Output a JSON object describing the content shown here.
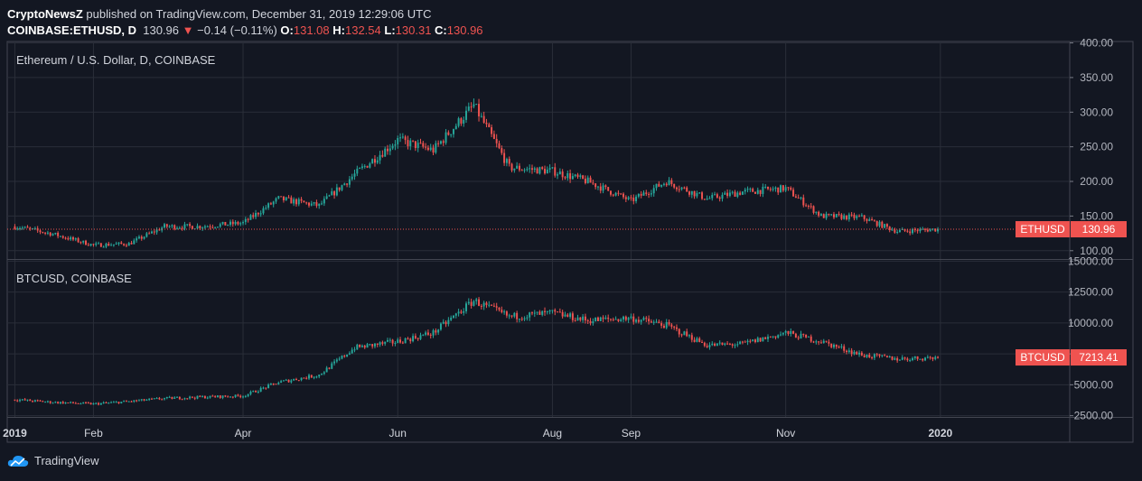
{
  "header": {
    "author": "CryptoNewsZ",
    "published_text": "published on TradingView.com, December 31, 2019 12:29:06 UTC",
    "symbol": "COINBASE:ETHUSD, D",
    "last": "130.96",
    "change": "−0.14 (−0.11%)",
    "o_label": "O:",
    "o_value": "131.08",
    "h_label": "H:",
    "h_value": "132.54",
    "l_label": "L:",
    "l_value": "130.31",
    "c_label": "C:",
    "c_value": "130.96"
  },
  "footer": {
    "brand": "TradingView"
  },
  "colors": {
    "background": "#131722",
    "up": "#26a69a",
    "down": "#ef5350",
    "grid": "#2a2e39",
    "axis_text": "#b2b5be"
  },
  "chart_data": [
    {
      "type": "candlestick",
      "title": "Ethereum / U.S. Dollar, D, COINBASE",
      "series_label": "ETHUSD",
      "last_price": "130.96",
      "ylim": [
        88,
        402
      ],
      "yticks": [
        "400.00",
        "350.00",
        "300.00",
        "250.00",
        "200.00",
        "150.00",
        "100.00"
      ],
      "ytick_values": [
        400,
        350,
        300,
        250,
        200,
        150,
        100
      ],
      "x": [
        "2019-01",
        "2019-01-15",
        "2019-02",
        "2019-02-15",
        "2019-03",
        "2019-03-15",
        "2019-04",
        "2019-04-15",
        "2019-05",
        "2019-05-15",
        "2019-06",
        "2019-06-15",
        "2019-07",
        "2019-07-15",
        "2019-08",
        "2019-08-15",
        "2019-09",
        "2019-09-15",
        "2019-10",
        "2019-10-15",
        "2019-11",
        "2019-11-15",
        "2019-12",
        "2019-12-15",
        "2019-12-31"
      ],
      "close_approx": [
        135,
        125,
        108,
        110,
        135,
        135,
        140,
        175,
        165,
        210,
        260,
        245,
        310,
        220,
        215,
        200,
        172,
        200,
        175,
        185,
        190,
        150,
        148,
        128,
        131
      ],
      "grid": true,
      "legend": "top-left"
    },
    {
      "type": "candlestick",
      "title": "BTCUSD, COINBASE",
      "series_label": "BTCUSD",
      "last_price": "7213.41",
      "ylim": [
        2400,
        15100
      ],
      "yticks": [
        "15000.00",
        "12500.00",
        "10000.00",
        "7500.00",
        "5000.00",
        "2500.00"
      ],
      "ytick_values": [
        15000,
        12500,
        10000,
        7500,
        5000,
        2500
      ],
      "x": [
        "2019-01",
        "2019-01-15",
        "2019-02",
        "2019-02-15",
        "2019-03",
        "2019-03-15",
        "2019-04",
        "2019-04-15",
        "2019-05",
        "2019-05-15",
        "2019-06",
        "2019-06-15",
        "2019-07",
        "2019-07-15",
        "2019-08",
        "2019-08-15",
        "2019-09",
        "2019-09-15",
        "2019-10",
        "2019-10-15",
        "2019-11",
        "2019-11-15",
        "2019-12",
        "2019-12-15",
        "2019-12-31"
      ],
      "close_approx": [
        3800,
        3600,
        3450,
        3650,
        3900,
        4000,
        4100,
        5200,
        5800,
        8000,
        8500,
        9200,
        11800,
        10500,
        10800,
        10200,
        10400,
        9800,
        8200,
        8300,
        9200,
        8500,
        7400,
        7100,
        7213
      ],
      "grid": true,
      "legend": "top-left"
    }
  ],
  "time_axis": {
    "labels": [
      "2019",
      "Feb",
      "Apr",
      "Jun",
      "Aug",
      "Sep",
      "Nov",
      "2020"
    ]
  }
}
